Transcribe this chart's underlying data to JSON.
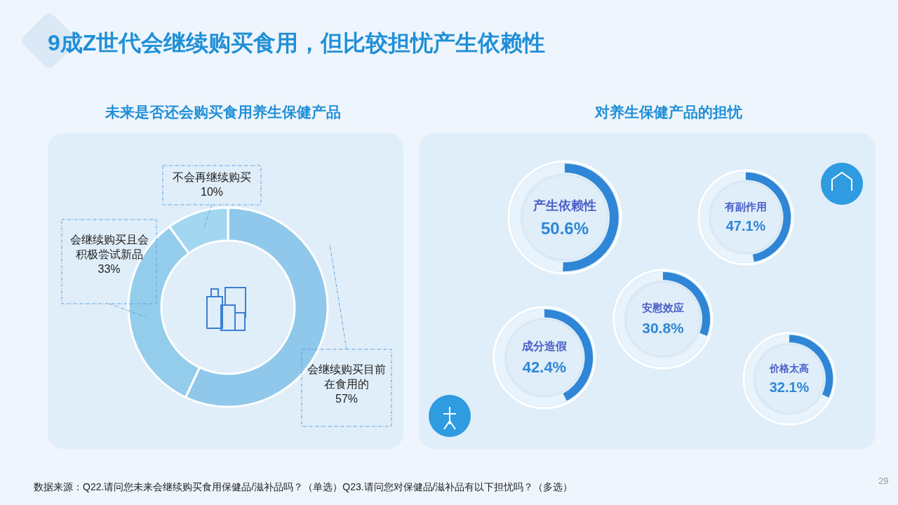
{
  "chart_data": [
    {
      "type": "donut",
      "title": "未来是否还会购买食用养生保健产品",
      "categories": [
        "会继续购买目前在食用的",
        "会继续购买且会积极尝试新品",
        "不会再继续购买"
      ],
      "values": [
        57,
        33,
        10
      ],
      "value_labels": [
        "57%",
        "33%",
        "10%"
      ],
      "colors": [
        "#8fc8ea",
        "#94cdec",
        "#a3d7f1"
      ],
      "annotations": [
        "9成Z世代会继续购买食用，但比较担忧产生依赖性"
      ]
    },
    {
      "type": "other",
      "title": "对养生保健产品的担忧",
      "annotations": [
        "数据来源：Q22.请问您未来会继续购买食用保健品/滋补品吗？（单选）Q23.请问您对保健品/滋补品有以下担忧吗？（多选）",
        "29"
      ]
    },
    {
      "type": "donut",
      "categories": [
        "产生依赖性",
        null
      ],
      "values": [
        50.6,
        49.4
      ],
      "value_labels": [
        "50.6%",
        null
      ],
      "colors": [
        "#2f86d6",
        "#e9f3fb"
      ]
    },
    {
      "type": "donut",
      "categories": [
        "有副作用",
        null
      ],
      "values": [
        47.1,
        52.9
      ],
      "value_labels": [
        "47.1%",
        null
      ],
      "colors": [
        "#2f86d6",
        "#e9f3fb"
      ]
    },
    {
      "type": "donut",
      "categories": [
        "安慰效应",
        null
      ],
      "values": [
        30.8,
        69.2
      ],
      "value_labels": [
        "30.8%",
        null
      ],
      "colors": [
        "#2f86d6",
        "#e9f3fb"
      ]
    },
    {
      "type": "donut",
      "categories": [
        "成分造假",
        null
      ],
      "values": [
        42.4,
        57.6
      ],
      "value_labels": [
        "42.4%",
        null
      ],
      "colors": [
        "#2f86d6",
        "#e9f3fb"
      ]
    },
    {
      "type": "donut",
      "categories": [
        "价格太高",
        null
      ],
      "values": [
        32.1,
        67.9
      ],
      "value_labels": [
        "32.1%",
        null
      ],
      "colors": [
        "#2f86d6",
        "#e9f3fb"
      ]
    }
  ]
}
